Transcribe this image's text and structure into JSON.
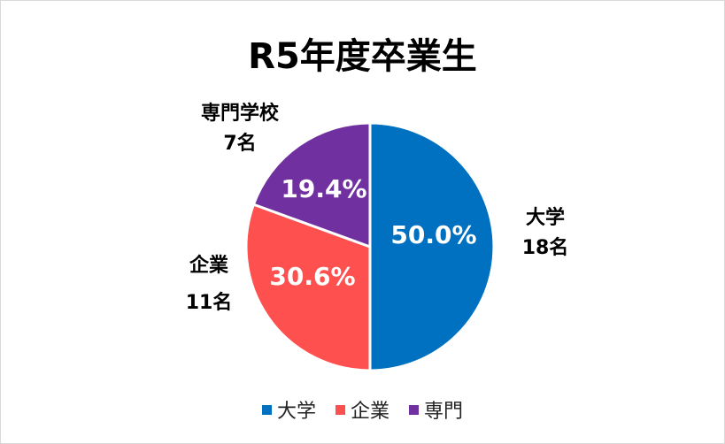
{
  "chart_data": {
    "type": "pie",
    "title": "R5年度卒業生",
    "categories": [
      "大学",
      "企業",
      "専門"
    ],
    "slices": [
      {
        "label": "大学",
        "outer_label": "大学",
        "count_label": "18名",
        "value": 18,
        "percent_label": "50.0%",
        "color": "#0070c0"
      },
      {
        "label": "企業",
        "outer_label": "企業",
        "count_label": "11名",
        "value": 11,
        "percent_label": "30.6%",
        "color": "#ff5050"
      },
      {
        "label": "専門",
        "outer_label": "専門学校",
        "count_label": "7名",
        "value": 7,
        "percent_label": "19.4%",
        "color": "#7030a0"
      }
    ],
    "legend": {
      "placement": "bottom",
      "items": [
        {
          "label": "大学",
          "color": "#0070c0"
        },
        {
          "label": "企業",
          "color": "#ff5050"
        },
        {
          "label": "専門",
          "color": "#7030a0"
        }
      ]
    }
  }
}
